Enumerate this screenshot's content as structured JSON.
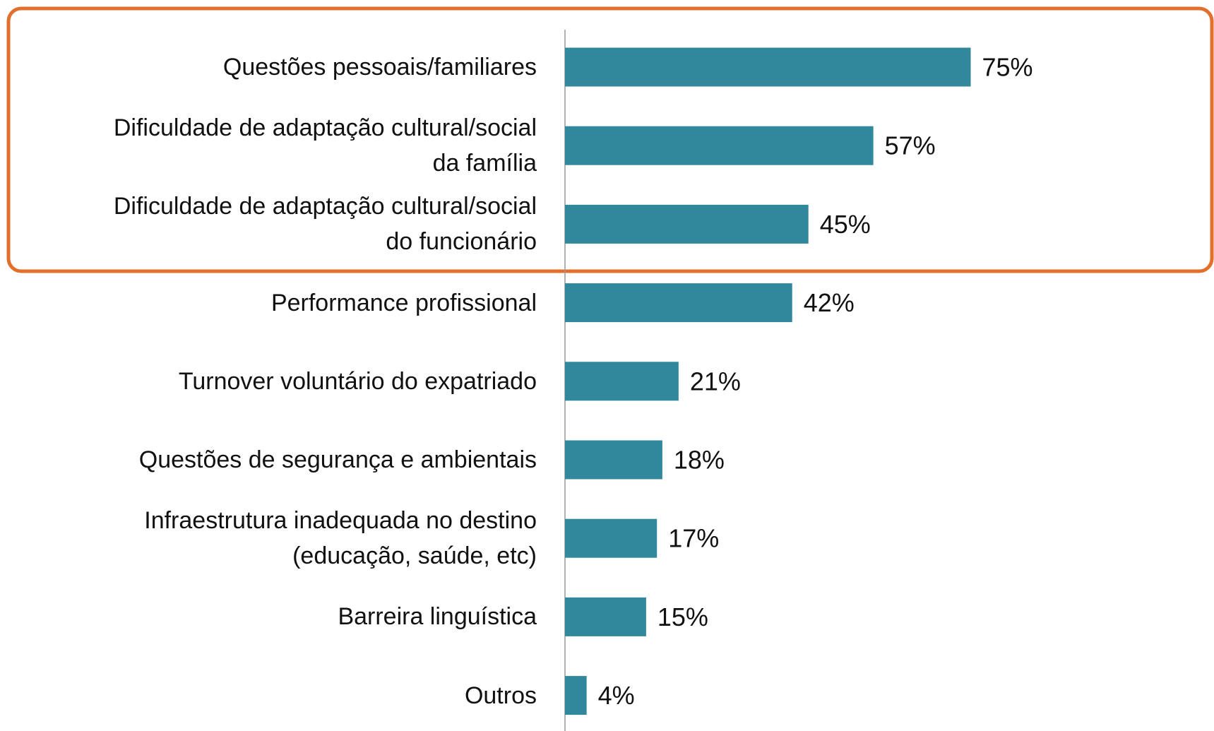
{
  "chart_data": {
    "type": "bar",
    "orientation": "horizontal",
    "categories": [
      "Questões pessoais/familiares",
      "Dificuldade de adaptação cultural/social\nda família",
      "Dificuldade de adaptação cultural/social\ndo funcionário",
      "Performance profissional",
      "Turnover voluntário do expatriado",
      "Questões de segurança e ambientais",
      "Infraestrutura inadequada no destino\n(educação, saúde, etc)",
      "Barreira linguística",
      "Outros"
    ],
    "values": [
      75,
      57,
      45,
      42,
      21,
      18,
      17,
      15,
      4
    ],
    "value_labels": [
      "75%",
      "57%",
      "45%",
      "42%",
      "21%",
      "18%",
      "17%",
      "15%",
      "4%"
    ],
    "color": "#31879c",
    "xlim": [
      0,
      100
    ],
    "highlight_color": "#e2702d"
  }
}
